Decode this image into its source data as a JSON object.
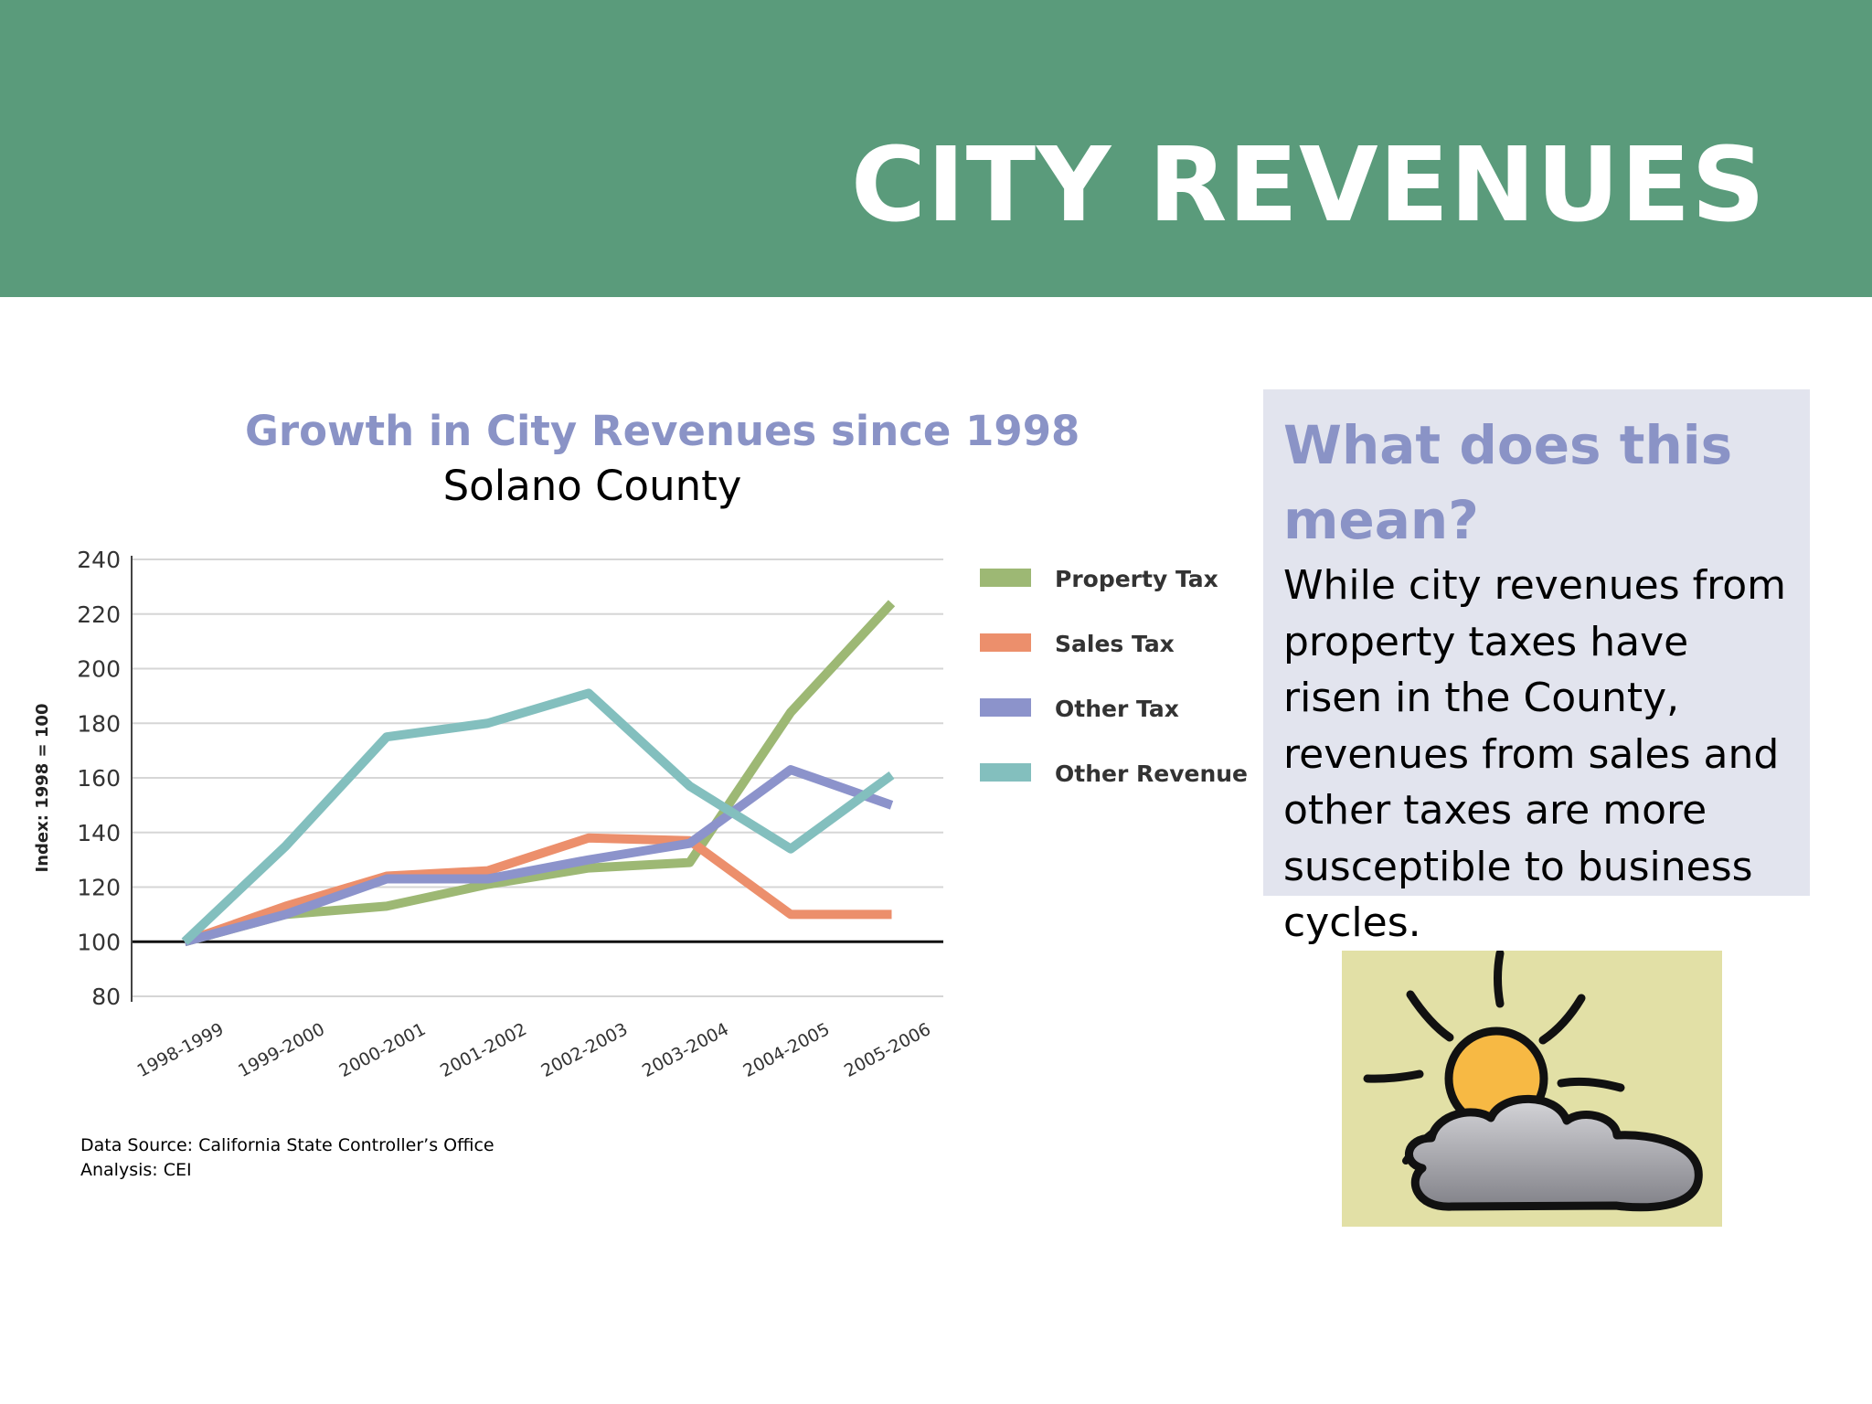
{
  "slide": {
    "title": "CITY REVENUES"
  },
  "chart_data": {
    "type": "line",
    "title": "Growth in City Revenues since 1998",
    "subtitle": "Solano County",
    "xlabel": "",
    "ylabel": "Index: 1998 = 100",
    "categories": [
      "1998-1999",
      "1999-2000",
      "2000-2001",
      "2001-2002",
      "2002-2003",
      "2003-2004",
      "2004-2005",
      "2005-2006"
    ],
    "ylim": [
      80,
      240
    ],
    "yticks": [
      80,
      100,
      120,
      140,
      160,
      180,
      200,
      220,
      240
    ],
    "ytick_labels": [
      "80",
      "100",
      "120",
      "140",
      "160",
      "180",
      "200",
      "220",
      "240"
    ],
    "baseline": 100,
    "grid": true,
    "legend_position": "right",
    "series": [
      {
        "name": "Property Tax",
        "color": "#9db874",
        "values": [
          100,
          110,
          113,
          121,
          127,
          129,
          184,
          224
        ]
      },
      {
        "name": "Sales Tax",
        "color": "#ec8f6c",
        "values": [
          100,
          113,
          124,
          126,
          138,
          137,
          110,
          110
        ]
      },
      {
        "name": "Other Tax",
        "color": "#8c93cb",
        "values": [
          100,
          110,
          123,
          123,
          130,
          136,
          163,
          150
        ]
      },
      {
        "name": "Other Revenue",
        "color": "#83bfbe",
        "values": [
          100,
          135,
          175,
          180,
          191,
          157,
          134,
          161
        ]
      }
    ]
  },
  "source_note": {
    "line1": "Data Source: California State Controller’s Office",
    "line2": "Analysis: CEI"
  },
  "callout": {
    "heading": "What does this mean?",
    "body": "While city revenues from property taxes have risen in the County, revenues from sales and other taxes are more susceptible to business cycles."
  },
  "clipart": {
    "icon": "sun-behind-cloud-icon",
    "background": "#e2e0a6"
  }
}
